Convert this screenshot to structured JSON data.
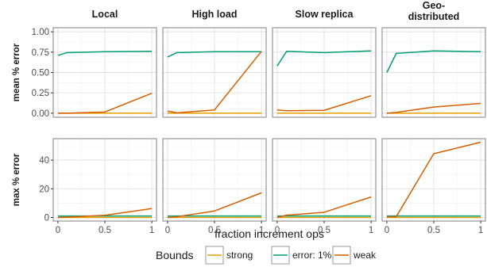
{
  "chart_data": {
    "type": "line",
    "xlabel": "fraction increment ops",
    "facets": [
      "Local",
      "High load",
      "Slow replica",
      "Geo-\ndistributed"
    ],
    "rows": [
      {
        "ylabel": "mean % error",
        "ylim": [
          -0.05,
          1.05
        ],
        "yticks": [
          0.0,
          0.25,
          0.5,
          0.75,
          1.0
        ],
        "ytick_labels": [
          "0.00",
          "0.25",
          "0.50",
          "0.75",
          "1.00"
        ]
      },
      {
        "ylabel": "max % error",
        "ylim": [
          -2.5,
          55
        ],
        "yticks": [
          0,
          20,
          40
        ],
        "ytick_labels": [
          "0",
          "20",
          "40"
        ]
      }
    ],
    "xlim": [
      -0.05,
      1.05
    ],
    "xticks": [
      0,
      0.5,
      1
    ],
    "xtick_labels": [
      "0",
      "0.5",
      "1"
    ],
    "x": [
      0.0,
      0.1,
      0.5,
      1.0
    ],
    "colors": {
      "strong": "#E69F00",
      "error: 1%": "#009E73",
      "weak": "#D55E00"
    },
    "legend": {
      "title": "Bounds",
      "entries": [
        "strong",
        "error: 1%",
        "weak"
      ],
      "placement": "bottom"
    },
    "panels": [
      {
        "row": 0,
        "col": 0,
        "series": [
          {
            "name": "strong",
            "values": [
              0.0,
              0.0,
              0.0,
              0.0
            ]
          },
          {
            "name": "error: 1%",
            "values": [
              0.71,
              0.745,
              0.755,
              0.76
            ]
          },
          {
            "name": "weak",
            "values": [
              0.0,
              0.0,
              0.015,
              0.245
            ]
          }
        ]
      },
      {
        "row": 0,
        "col": 1,
        "series": [
          {
            "name": "strong",
            "values": [
              0.0,
              0.0,
              0.0,
              0.0
            ]
          },
          {
            "name": "error: 1%",
            "values": [
              0.69,
              0.745,
              0.755,
              0.755
            ]
          },
          {
            "name": "weak",
            "values": [
              0.025,
              0.005,
              0.04,
              0.76
            ]
          }
        ]
      },
      {
        "row": 0,
        "col": 2,
        "series": [
          {
            "name": "strong",
            "values": [
              0.0,
              0.0,
              0.0,
              0.0
            ]
          },
          {
            "name": "error: 1%",
            "values": [
              0.58,
              0.76,
              0.745,
              0.765
            ]
          },
          {
            "name": "weak",
            "values": [
              0.04,
              0.03,
              0.035,
              0.215
            ]
          }
        ]
      },
      {
        "row": 0,
        "col": 3,
        "series": [
          {
            "name": "strong",
            "values": [
              0.0,
              0.0,
              0.0,
              0.0
            ]
          },
          {
            "name": "error: 1%",
            "values": [
              0.5,
              0.735,
              0.765,
              0.755
            ]
          },
          {
            "name": "weak",
            "values": [
              0.0,
              0.01,
              0.075,
              0.12
            ]
          }
        ]
      },
      {
        "row": 1,
        "col": 0,
        "series": [
          {
            "name": "strong",
            "values": [
              0.0,
              0.0,
              0.0,
              0.0
            ]
          },
          {
            "name": "error: 1%",
            "values": [
              1.0,
              1.0,
              1.0,
              1.0
            ]
          },
          {
            "name": "weak",
            "values": [
              0.0,
              0.3,
              1.5,
              6.2
            ]
          }
        ]
      },
      {
        "row": 1,
        "col": 1,
        "series": [
          {
            "name": "strong",
            "values": [
              0.0,
              0.0,
              0.0,
              0.0
            ]
          },
          {
            "name": "error: 1%",
            "values": [
              1.0,
              1.0,
              1.0,
              1.0
            ]
          },
          {
            "name": "weak",
            "values": [
              0.0,
              0.5,
              4.5,
              17.2
            ]
          }
        ]
      },
      {
        "row": 1,
        "col": 2,
        "series": [
          {
            "name": "strong",
            "values": [
              0.0,
              0.0,
              0.0,
              0.0
            ]
          },
          {
            "name": "error: 1%",
            "values": [
              1.0,
              1.0,
              1.0,
              1.0
            ]
          },
          {
            "name": "weak",
            "values": [
              0.0,
              1.6,
              3.6,
              14.3
            ]
          }
        ]
      },
      {
        "row": 1,
        "col": 3,
        "series": [
          {
            "name": "strong",
            "values": [
              0.0,
              0.0,
              0.0,
              0.0
            ]
          },
          {
            "name": "error: 1%",
            "values": [
              1.0,
              1.0,
              1.0,
              1.0
            ]
          },
          {
            "name": "weak",
            "values": [
              0.5,
              0.5,
              44.5,
              52.5
            ]
          }
        ]
      }
    ]
  }
}
